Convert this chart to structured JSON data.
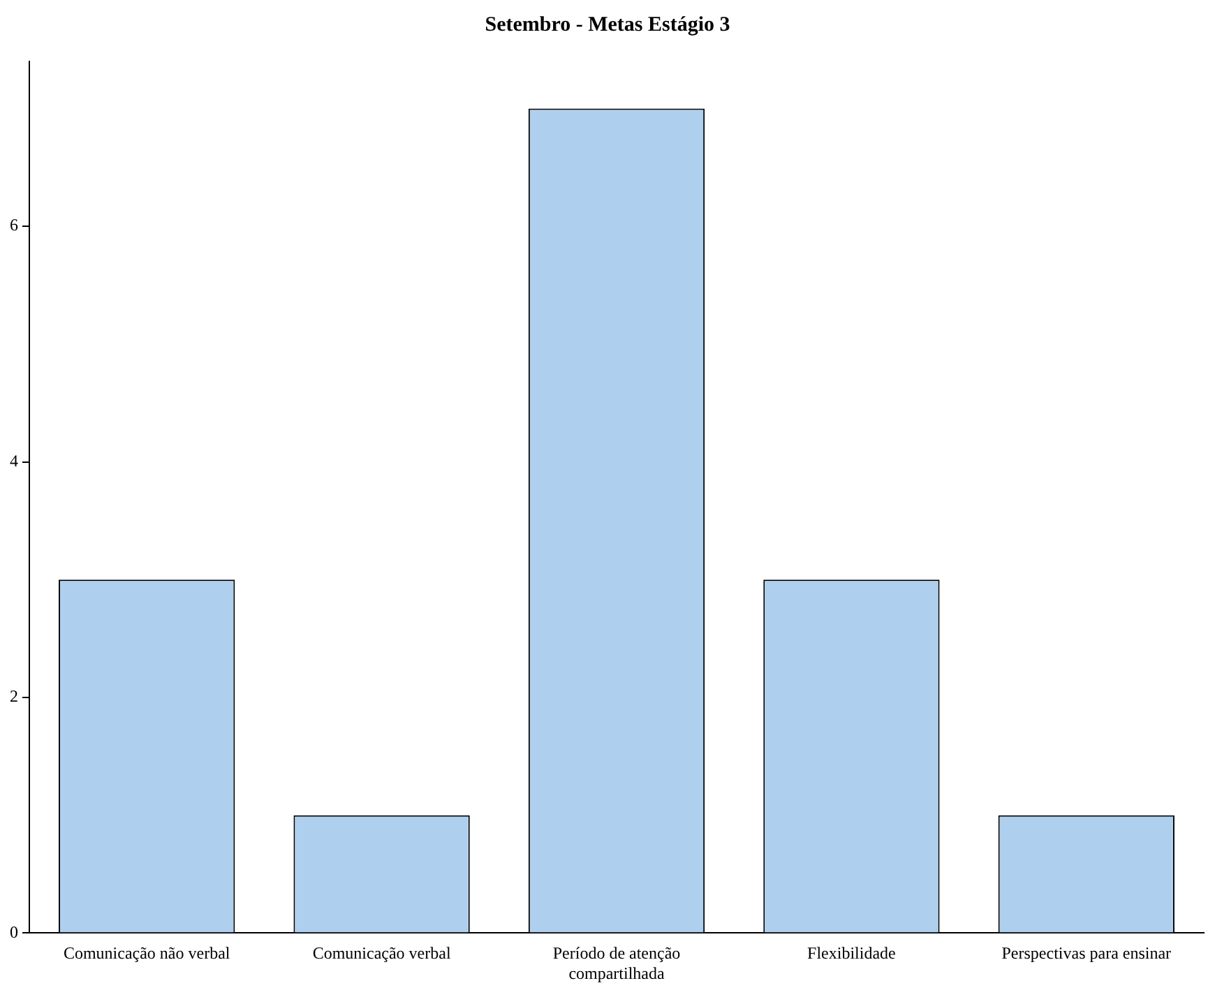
{
  "chart_data": {
    "type": "bar",
    "title": "Setembro - Metas Estágio 3",
    "categories": [
      "Comunicação não verbal",
      "Comunicação verbal",
      "Período de atenção compartilhada",
      "Flexibilidade",
      "Perspectivas para ensinar"
    ],
    "values": [
      3,
      1,
      7,
      3,
      1
    ],
    "color": "#aecfee",
    "ylim": [
      0,
      7.4
    ],
    "yticks": [
      0,
      2,
      4,
      6
    ],
    "grid": false,
    "legend": false
  }
}
